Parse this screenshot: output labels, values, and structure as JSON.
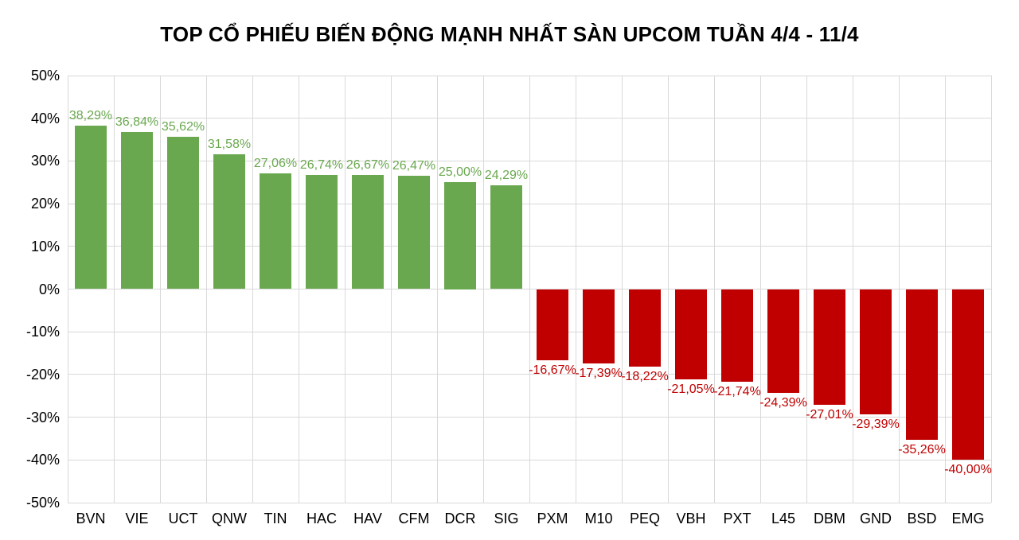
{
  "title": "TOP CỔ PHIẾU BIẾN ĐỘNG MẠNH NHẤT SÀN UPCOM TUẦN 4/4 - 11/4",
  "colors": {
    "positive_bar": "#6aa84f",
    "negative_bar": "#c00000",
    "gridline": "#d9d9d9",
    "axis_text": "#000000",
    "background": "#ffffff"
  },
  "chart_data": {
    "type": "bar",
    "title": "TOP CỔ PHIẾU BIẾN ĐỘNG MẠNH NHẤT SÀN UPCOM TUẦN 4/4 - 11/4",
    "categories": [
      "BVN",
      "VIE",
      "UCT",
      "QNW",
      "TIN",
      "HAC",
      "HAV",
      "CFM",
      "DCR",
      "SIG",
      "PXM",
      "M10",
      "PEQ",
      "VBH",
      "PXT",
      "L45",
      "DBM",
      "GND",
      "BSD",
      "EMG"
    ],
    "values": [
      38.29,
      36.84,
      35.62,
      31.58,
      27.06,
      26.74,
      26.67,
      26.47,
      25.0,
      24.29,
      -16.67,
      -17.39,
      -18.22,
      -21.05,
      -21.74,
      -24.39,
      -27.01,
      -29.39,
      -35.26,
      -40.0
    ],
    "value_labels": [
      "38,29%",
      "36,84%",
      "35,62%",
      "31,58%",
      "27,06%",
      "26,74%",
      "26,67%",
      "26,47%",
      "25,00%",
      "24,29%",
      "-16,67%",
      "-17,39%",
      "-18,22%",
      "-21,05%",
      "-21,74%",
      "-24,39%",
      "-27,01%",
      "-29,39%",
      "-35,26%",
      "-40,00%"
    ],
    "xlabel": "",
    "ylabel": "",
    "ylim": [
      -50,
      50
    ],
    "y_tick_labels": [
      "50%",
      "40%",
      "30%",
      "20%",
      "10%",
      "0%",
      "-10%",
      "-20%",
      "-30%",
      "-40%",
      "-50%"
    ],
    "y_tick_values": [
      50,
      40,
      30,
      20,
      10,
      0,
      -10,
      -20,
      -30,
      -40,
      -50
    ],
    "grid": "both",
    "legend_position": "none",
    "bar_width_fraction": 0.69
  }
}
